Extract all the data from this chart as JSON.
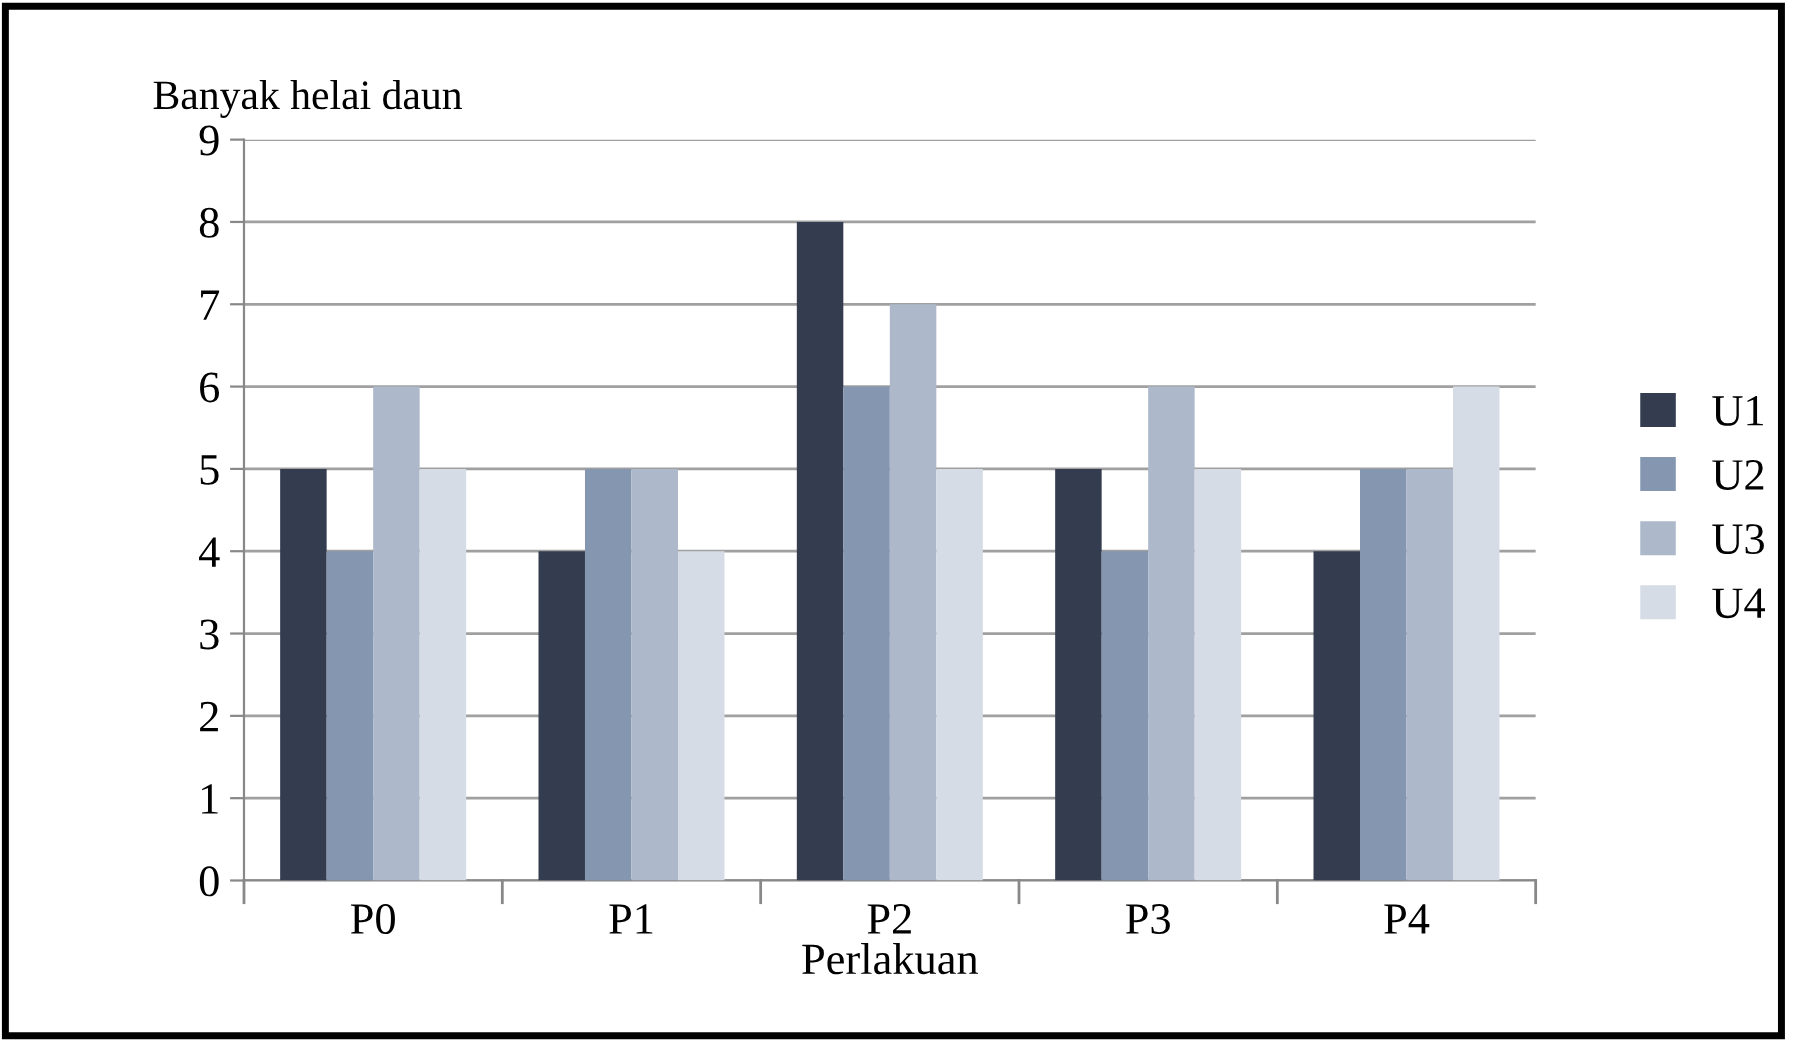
{
  "chart_data": {
    "type": "bar",
    "ylabel": "Banyak helai daun",
    "xlabel": "Perlakuan",
    "categories": [
      "P0",
      "P1",
      "P2",
      "P3",
      "P4"
    ],
    "series": [
      {
        "name": "U1",
        "color": "#333d4f",
        "values": [
          5,
          4,
          8,
          5,
          4
        ]
      },
      {
        "name": "U2",
        "color": "#8496b0",
        "values": [
          4,
          5,
          6,
          4,
          5
        ]
      },
      {
        "name": "U3",
        "color": "#adb9ca",
        "values": [
          6,
          5,
          7,
          6,
          5
        ]
      },
      {
        "name": "U4",
        "color": "#d6dce5",
        "values": [
          5,
          4,
          5,
          5,
          6
        ]
      }
    ],
    "ylim": [
      0,
      9
    ],
    "yticks": [
      0,
      1,
      2,
      3,
      4,
      5,
      6,
      7,
      8,
      9
    ],
    "grid": "y",
    "legend": "right"
  }
}
